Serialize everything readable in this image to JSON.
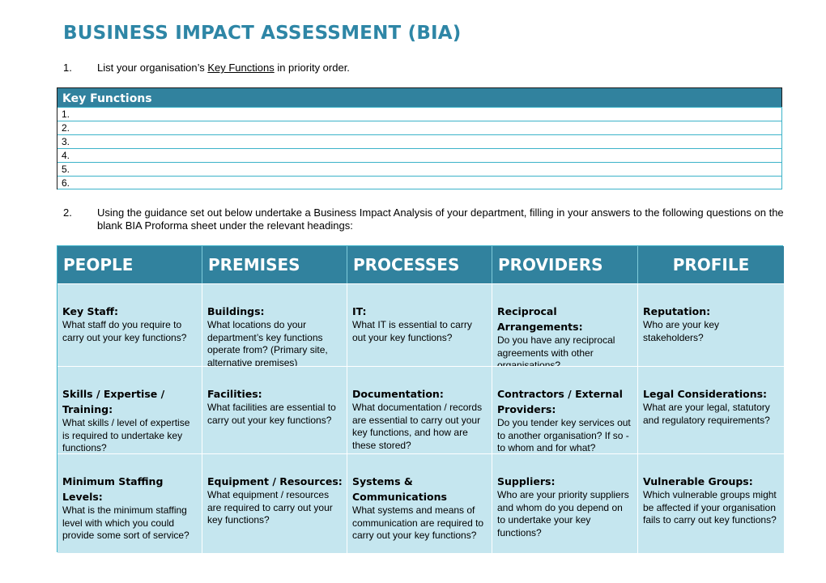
{
  "title": "BUSINESS IMPACT ASSESSMENT (BIA)",
  "step1": {
    "number": "1.",
    "text_before": "List your organisation’s ",
    "link_text": "Key Functions",
    "text_after": " in priority order."
  },
  "key_functions": {
    "header": "Key Functions",
    "rows": [
      "1.",
      "2.",
      "3.",
      "4.",
      "5.",
      "6."
    ]
  },
  "step2": {
    "number": "2.",
    "text": "Using the guidance set out below undertake a Business Impact Analysis of your department, filling in your answers to the following questions on the blank BIA Proforma sheet under the relevant headings:"
  },
  "grid": {
    "headers": [
      "PEOPLE",
      "PREMISES",
      "PROCESSES",
      "PROVIDERS",
      "PROFILE"
    ],
    "rows": [
      [
        {
          "heading": "Key Staff:",
          "body": "What staff do you require to carry out your key functions?"
        },
        {
          "heading": "Buildings:",
          "body": "What locations do your department’s key functions operate from? (Primary site, alternative premises)"
        },
        {
          "heading": "IT:",
          "body": "What IT is essential to carry out your key functions?"
        },
        {
          "heading": "Reciprocal Arrangements:",
          "body": "Do you have any reciprocal agreements with other organisations?"
        },
        {
          "heading": "Reputation:",
          "body": "Who are your key stakeholders?"
        }
      ],
      [
        {
          "heading": "Skills / Expertise / Training:",
          "body": "What skills / level of expertise is required to undertake key functions?"
        },
        {
          "heading": "Facilities:",
          "body": "What facilities are essential to carry out your key functions?"
        },
        {
          "heading": "Documentation:",
          "body": "What documentation / records are essential to carry out your key functions, and how are these stored?"
        },
        {
          "heading": "Contractors / External Providers:",
          "body": "Do you tender key services out to another organisation? If so - to whom and for what?"
        },
        {
          "heading": "Legal Considerations:",
          "body": "What are your legal, statutory and regulatory requirements?"
        }
      ],
      [
        {
          "heading": "Minimum Staffing Levels:",
          "body": "What is the minimum staffing level with which you could provide some sort of service?"
        },
        {
          "heading": "Equipment / Resources:",
          "body": "What equipment / resources are required to carry out your key functions?"
        },
        {
          "heading": "Systems & Communications",
          "body": "What systems and means of communication are required to carry out your key functions?"
        },
        {
          "heading": "Suppliers:",
          "body": "Who are your priority suppliers and whom do you depend on to undertake your key functions?"
        },
        {
          "heading": "Vulnerable Groups:",
          "body": "Which vulnerable groups might be affected if your organisation fails to carry out key functions?"
        }
      ]
    ]
  }
}
